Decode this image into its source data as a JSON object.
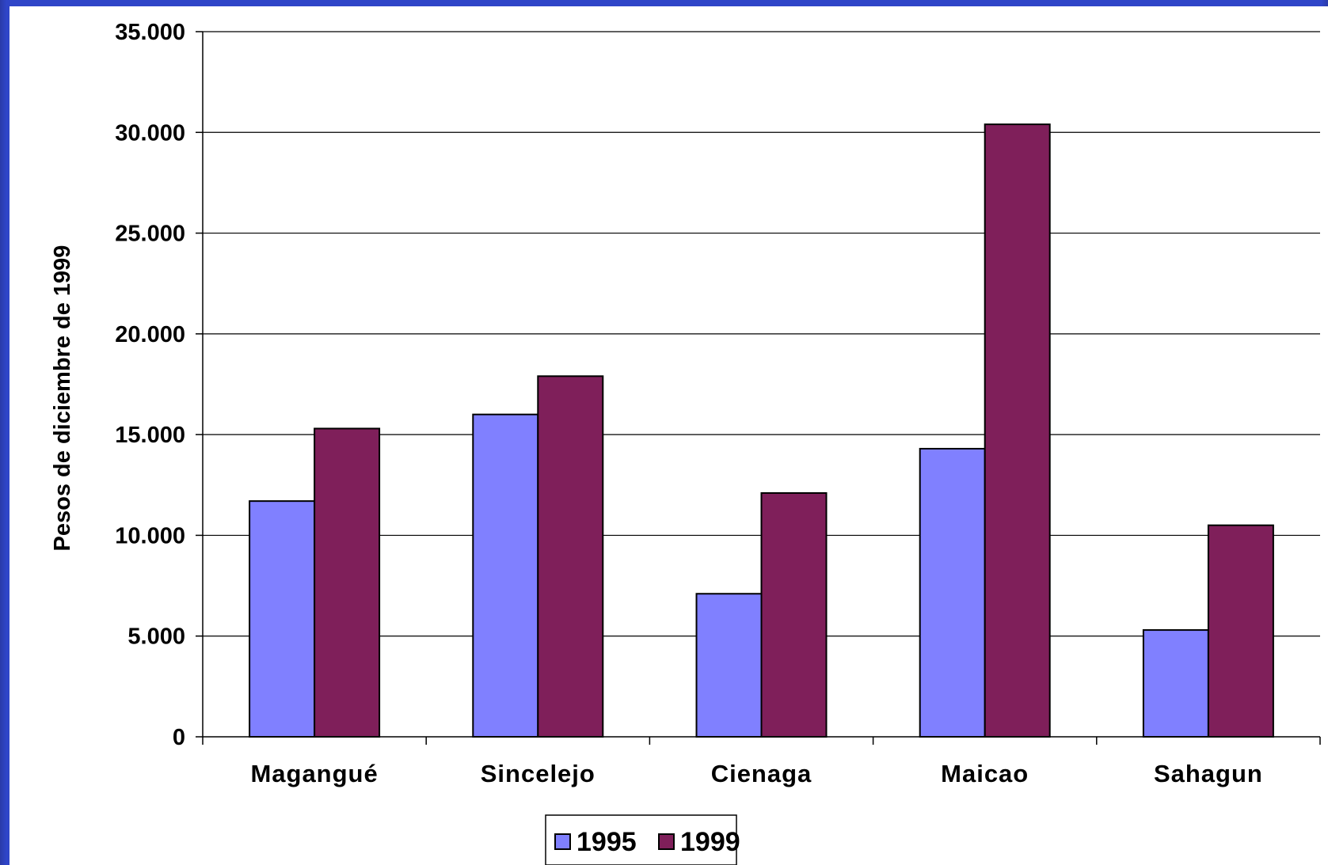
{
  "colors": {
    "background": "#2f45c8",
    "series_1995": "#8080ff",
    "series_1999": "#7f1f5a",
    "grid": "#000000"
  },
  "chart_data": {
    "type": "bar",
    "title": "",
    "xlabel": "",
    "ylabel": "Pesos de diciembre de 1999",
    "ylim": [
      0,
      35000
    ],
    "yticks": [
      0,
      5000,
      10000,
      15000,
      20000,
      25000,
      30000,
      35000
    ],
    "ytick_labels": [
      "0",
      "5.000",
      "10.000",
      "15.000",
      "20.000",
      "25.000",
      "30.000",
      "35.000"
    ],
    "grid": true,
    "legend_position": "bottom",
    "categories": [
      "Magangué",
      "Sincelejo",
      "Cienaga",
      "Maicao",
      "Sahagun"
    ],
    "series": [
      {
        "name": "1995",
        "values": [
          11700,
          16000,
          7100,
          14300,
          5300
        ]
      },
      {
        "name": "1999",
        "values": [
          15300,
          17900,
          12100,
          30400,
          10500
        ]
      }
    ]
  }
}
